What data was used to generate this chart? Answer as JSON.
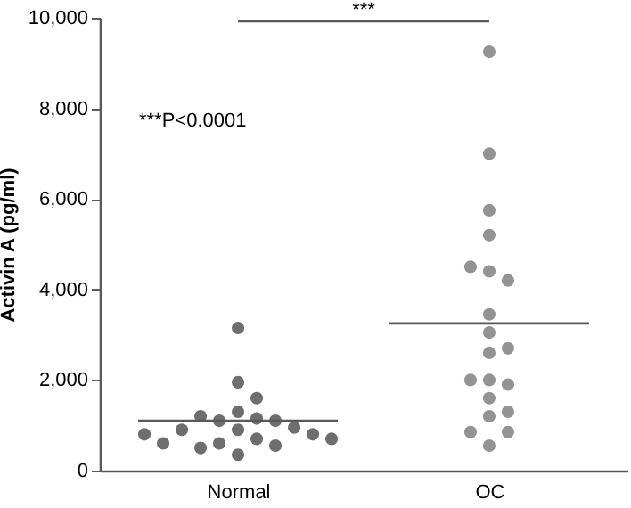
{
  "chart_data": {
    "type": "scatter",
    "ylabel": "Activin A (pg/ml)",
    "categories": [
      "Normal",
      "OC"
    ],
    "ylim": [
      0,
      10000
    ],
    "yticks": [
      {
        "value": 0,
        "label": "0"
      },
      {
        "value": 2000,
        "label": "2,000"
      },
      {
        "value": 4000,
        "label": "4,000"
      },
      {
        "value": 6000,
        "label": "6,000"
      },
      {
        "value": 8000,
        "label": "8,000"
      },
      {
        "value": 10000,
        "label": "10,000"
      }
    ],
    "marker": "circle",
    "series": [
      {
        "color": "#6e6e6e",
        "x": [
          "Normal",
          "Normal",
          "Normal",
          "Normal",
          "Normal",
          "Normal",
          "Normal",
          "Normal",
          "Normal",
          "Normal",
          "Normal",
          "Normal",
          "Normal",
          "Normal",
          "Normal",
          "Normal",
          "Normal",
          "Normal",
          "Normal",
          "Normal"
        ],
        "values": [
          3150,
          1950,
          1600,
          1300,
          1150,
          1100,
          1100,
          1200,
          950,
          900,
          900,
          700,
          600,
          550,
          350,
          500,
          800,
          600,
          700,
          800
        ]
      },
      {
        "color": "#939393",
        "x": [
          "OC",
          "OC",
          "OC",
          "OC",
          "OC",
          "OC",
          "OC",
          "OC",
          "OC",
          "OC",
          "OC",
          "OC",
          "OC",
          "OC",
          "OC",
          "OC",
          "OC",
          "OC",
          "OC",
          "OC"
        ],
        "values": [
          9250,
          7000,
          5750,
          5200,
          4400,
          4200,
          4500,
          3450,
          3050,
          2600,
          2700,
          2000,
          1900,
          2000,
          1600,
          1300,
          1200,
          850,
          850,
          550
        ]
      }
    ],
    "ref_lines": [
      {
        "axis": "y",
        "value": 1100,
        "color": "#595959"
      },
      {
        "axis": "y",
        "value": 3250,
        "color": "#595959"
      }
    ],
    "annotations": [
      "***",
      "***P<0.0001"
    ]
  }
}
